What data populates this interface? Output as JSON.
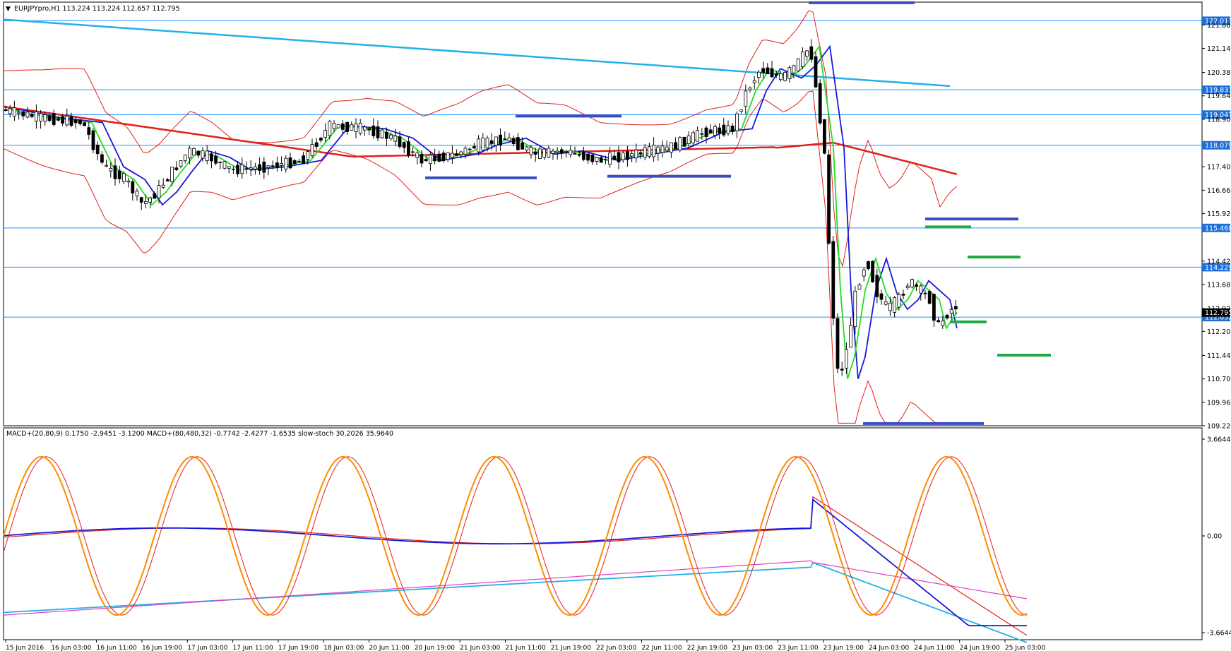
{
  "header": {
    "symbol_caption": "EURJPYpro,H1  113.224 113.224 112.657 112.795"
  },
  "indicator_caption": "MACD+(20,80,9) 0.1750 -2.9451 -3.1200   MACD+(80,480,32) -0.7742 -2.4277 -1.6535   slow-stoch 30.2026 35.9640",
  "colors": {
    "bull_candle": "#ffffff",
    "bear_candle": "#000000",
    "sr_line": "#1e90ff",
    "level_blue": "#3c4bbf",
    "level_green": "#22a845",
    "ma_red": "#e0201a",
    "band_red": "#e0201a",
    "ema_blue": "#1818d8",
    "ema_green": "#22dd22",
    "trend_cyan": "#22b0e8",
    "stoch_orange": "#ff8c00",
    "macd_magenta": "#e040c0",
    "badge_bg": "#1e6fd8",
    "current_badge_bg": "#000000"
  },
  "chart_data": {
    "type": "candlestick",
    "price_axis_ticks": [
      "121.880",
      "121.140",
      "120.380",
      "119.640",
      "118.900",
      "117.400",
      "116.660",
      "115.920",
      "114.420",
      "113.680",
      "112.925",
      "112.200",
      "111.440",
      "110.700",
      "109.960",
      "109.220"
    ],
    "price_range": [
      109.22,
      122.6
    ],
    "sr_levels": [
      "122.011",
      "119.831",
      "119.047",
      "118.079",
      "115.468",
      "114.229",
      "112.652"
    ],
    "current_price": "112.795",
    "time_labels": [
      "15 Jun 2016",
      "16 Jun 03:00",
      "16 Jun 11:00",
      "16 Jun 19:00",
      "17 Jun 03:00",
      "17 Jun 11:00",
      "17 Jun 19:00",
      "18 Jun 03:00",
      "20 Jun 11:00",
      "20 Jun 19:00",
      "21 Jun 03:00",
      "21 Jun 11:00",
      "21 Jun 19:00",
      "22 Jun 03:00",
      "22 Jun 11:00",
      "22 Jun 19:00",
      "23 Jun 03:00",
      "23 Jun 11:00",
      "23 Jun 19:00",
      "24 Jun 03:00",
      "24 Jun 11:00",
      "24 Jun 19:00",
      "25 Jun 03:00"
    ],
    "indicator_axis_ticks": [
      "3.6644",
      "0.00",
      "-3.6644"
    ],
    "indicator_range": [
      -3.6644,
      3.6644
    ]
  }
}
